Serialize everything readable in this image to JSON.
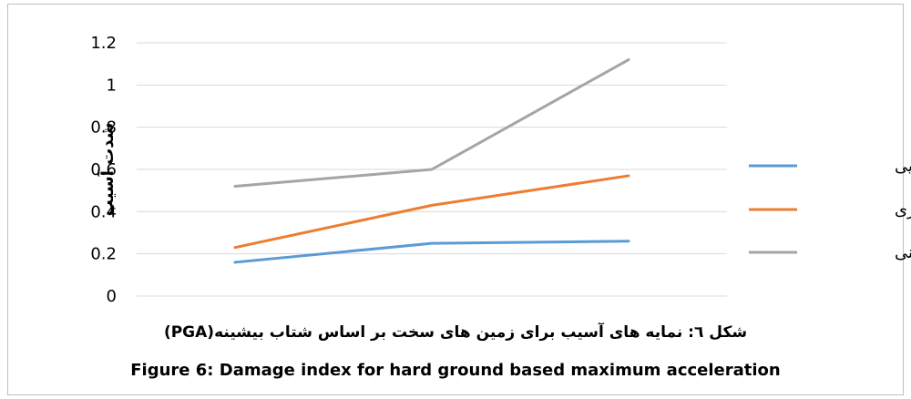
{
  "chart_data": {
    "type": "line",
    "ylabel": "شدت آسیب",
    "xlabel": "",
    "ylim": [
      0,
      1.2
    ],
    "yticks": [
      "0",
      "0.2",
      "0.4",
      "0.6",
      "0.8",
      "1",
      "1.2"
    ],
    "grid": true,
    "legend_position": "right",
    "categories": [
      "",
      "",
      ""
    ],
    "series": [
      {
        "name": "مصالح بنایی",
        "color": "#5b9bd5",
        "values": [
          0.16,
          0.25,
          0.26
        ]
      },
      {
        "name": "اسکلت فلزی",
        "color": "#ed7d31",
        "values": [
          0.23,
          0.43,
          0.57
        ]
      },
      {
        "name": "اسکلت بتنی",
        "color": "#a5a5a5",
        "values": [
          0.52,
          0.6,
          1.12
        ]
      }
    ]
  },
  "caption": {
    "persian": "شکل ٦: نمایه های آسیب برای زمین های سخت بر اساس شتاب بیشینه(PGA)",
    "english": "Figure 6: Damage index for hard ground based maximum acceleration"
  }
}
